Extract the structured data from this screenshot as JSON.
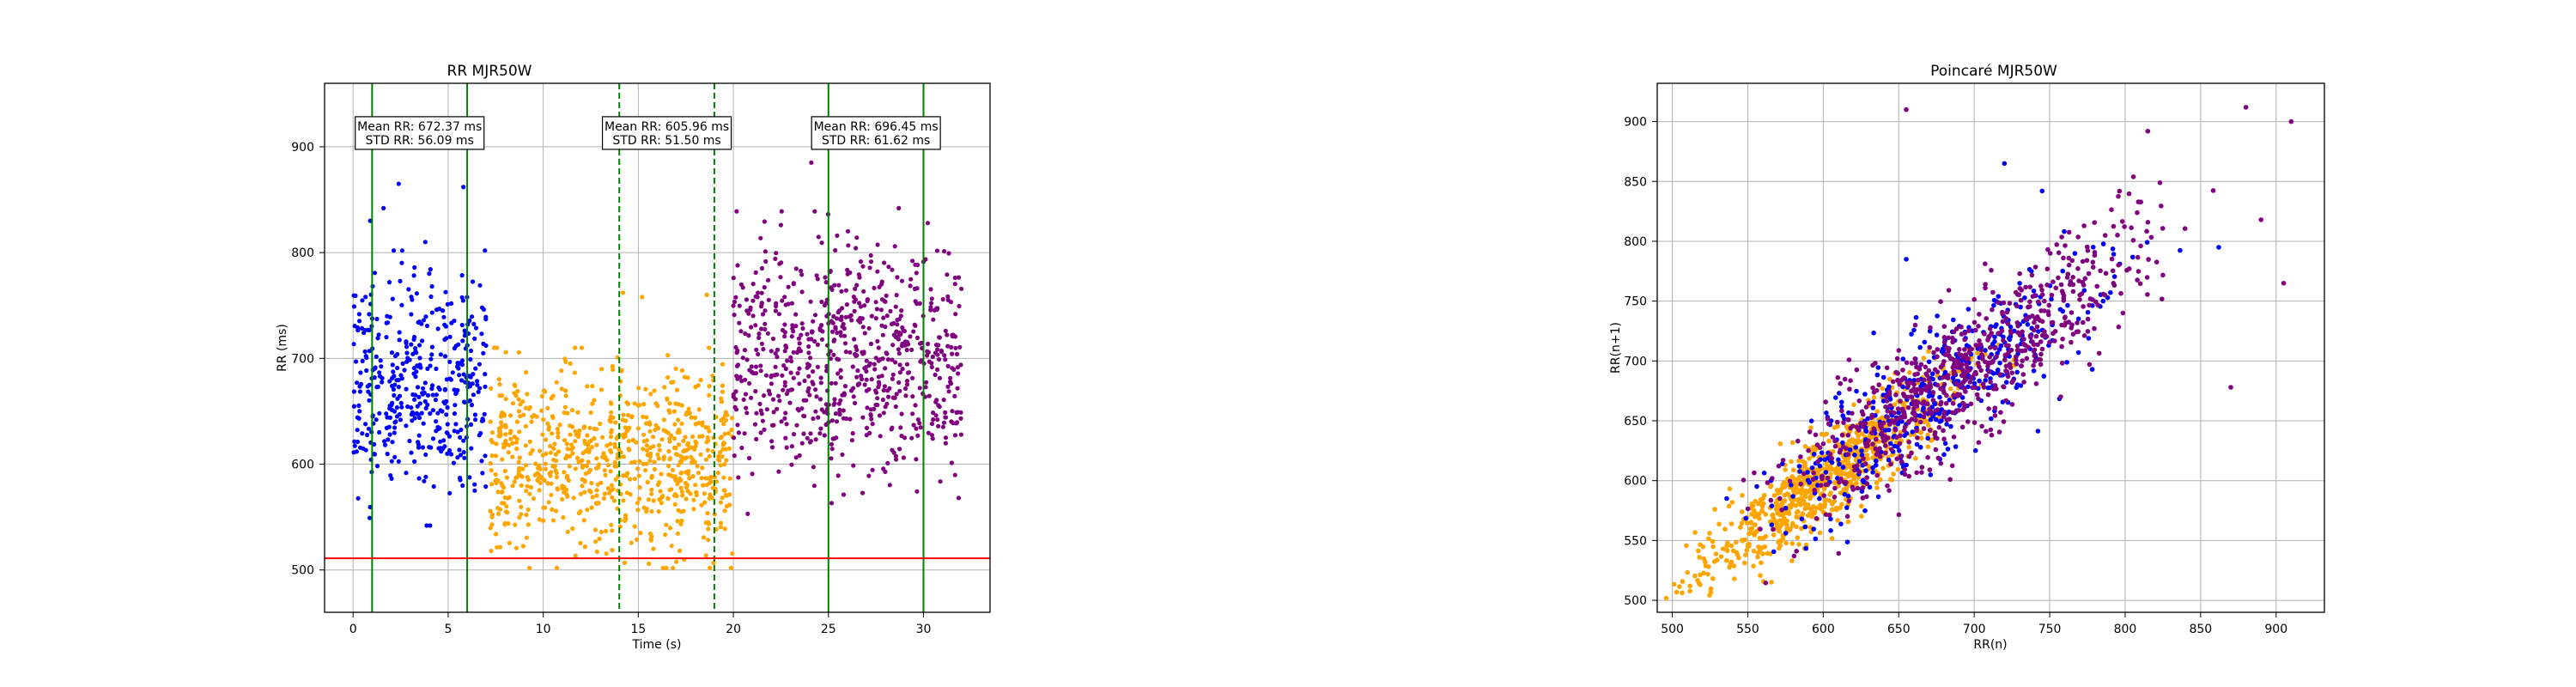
{
  "chart_data": [
    {
      "type": "scatter",
      "title": "RR MJR50W",
      "xlabel": "Time (s)",
      "ylabel": "RR (ms)",
      "xlim": [
        -1.5,
        33.5
      ],
      "ylim": [
        460,
        960
      ],
      "xticks": [
        0,
        5,
        10,
        15,
        20,
        25,
        30
      ],
      "yticks": [
        500,
        600,
        700,
        800,
        900
      ],
      "grid": true,
      "segments": [
        {
          "color": "#0000ff",
          "x_range": [
            0,
            7
          ],
          "mean": 672,
          "std": 50
        },
        {
          "color": "#ffa500",
          "x_range": [
            7.2,
            20
          ],
          "mean": 606,
          "std": 40
        },
        {
          "color": "#800080",
          "x_range": [
            20,
            32
          ],
          "mean": 696,
          "std": 55
        }
      ],
      "outliers": [
        {
          "color": "#0000ff",
          "points": [
            [
              2.4,
              865
            ],
            [
              5.8,
              862
            ],
            [
              0.9,
              830
            ],
            [
              1.6,
              842
            ],
            [
              3.8,
              810
            ]
          ]
        },
        {
          "color": "#ffa500",
          "points": [
            [
              14.2,
              762
            ],
            [
              15.2,
              758
            ],
            [
              18.6,
              760
            ],
            [
              12.2,
              522
            ],
            [
              15.8,
              520
            ]
          ]
        },
        {
          "color": "#800080",
          "points": [
            [
              24.1,
              885
            ],
            [
              28.7,
              842
            ],
            [
              22.5,
              826
            ]
          ]
        }
      ],
      "vlines": [
        {
          "x": 1,
          "color": "#008000",
          "style": "solid"
        },
        {
          "x": 6,
          "color": "#008000",
          "style": "solid"
        },
        {
          "x": 14,
          "color": "#008000",
          "style": "dashed"
        },
        {
          "x": 19,
          "color": "#008000",
          "style": "dashed"
        },
        {
          "x": 25,
          "color": "#008000",
          "style": "solid"
        },
        {
          "x": 30,
          "color": "#008000",
          "style": "solid"
        }
      ],
      "hline": {
        "y": 511,
        "color": "#ff0000"
      },
      "annotations": [
        {
          "x": 3.5,
          "y": 913,
          "line1": "Mean RR: 672.37 ms",
          "line2": "STD RR: 56.09 ms"
        },
        {
          "x": 16.5,
          "y": 913,
          "line1": "Mean RR: 605.96 ms",
          "line2": "STD RR: 51.50 ms"
        },
        {
          "x": 27.5,
          "y": 913,
          "line1": "Mean RR: 696.45 ms",
          "line2": "STD RR: 61.62 ms"
        }
      ]
    },
    {
      "type": "scatter",
      "title": "Poincaré MJR50W",
      "xlabel": "RR(n)",
      "ylabel": "RR(n+1)",
      "xlim": [
        490,
        932
      ],
      "ylim": [
        490,
        932
      ],
      "xticks": [
        500,
        550,
        600,
        650,
        700,
        750,
        800,
        850,
        900
      ],
      "yticks": [
        500,
        550,
        600,
        650,
        700,
        750,
        800,
        850,
        900
      ],
      "grid": true,
      "clusters": [
        {
          "color": "#ffa500",
          "mean": 606,
          "std": 40,
          "spread": 22
        },
        {
          "color": "#0000ff",
          "mean": 672,
          "std": 48,
          "spread": 32
        },
        {
          "color": "#800080",
          "mean": 696,
          "std": 55,
          "spread": 36
        }
      ],
      "outliers": [
        {
          "color": "#800080",
          "points": [
            [
              655,
              910
            ],
            [
              880,
              912
            ],
            [
              910,
              900
            ],
            [
              815,
              892
            ],
            [
              870,
              678
            ],
            [
              905,
              765
            ],
            [
              890,
              818
            ]
          ]
        },
        {
          "color": "#0000ff",
          "points": [
            [
              655,
              785
            ],
            [
              720,
              865
            ],
            [
              745,
              842
            ],
            [
              862,
              795
            ]
          ]
        }
      ]
    }
  ]
}
